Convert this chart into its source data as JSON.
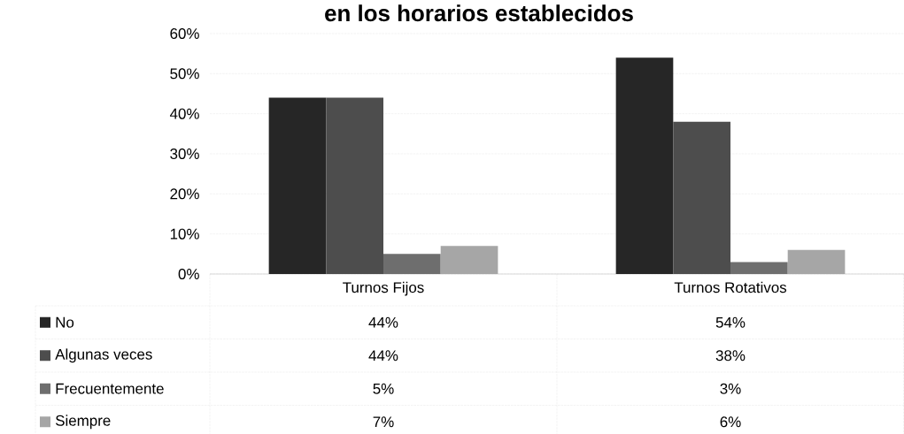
{
  "chart_data": {
    "type": "bar",
    "title": "en los horarios establecidos",
    "categories": [
      "Turnos Fijos",
      "Turnos Rotativos"
    ],
    "series": [
      {
        "name": "No",
        "color": "#262626",
        "values": [
          44,
          54
        ],
        "value_labels": [
          "44%",
          "54%"
        ]
      },
      {
        "name": "Algunas veces",
        "color": "#4d4d4d",
        "values": [
          44,
          38
        ],
        "value_labels": [
          "44%",
          "38%"
        ]
      },
      {
        "name": "Frecuentemente",
        "color": "#6e6e6e",
        "values": [
          5,
          3
        ],
        "value_labels": [
          "5%",
          "3%"
        ]
      },
      {
        "name": "Siempre",
        "color": "#a6a6a6",
        "values": [
          7,
          6
        ],
        "value_labels": [
          "7%",
          "6%"
        ]
      }
    ],
    "ylim": [
      0,
      60
    ],
    "yticks": [
      {
        "value": 0,
        "label": "0%"
      },
      {
        "value": 10,
        "label": "10%"
      },
      {
        "value": 20,
        "label": "20%"
      },
      {
        "value": 30,
        "label": "30%"
      },
      {
        "value": 40,
        "label": "40%"
      },
      {
        "value": 50,
        "label": "50%"
      },
      {
        "value": 60,
        "label": "60%"
      }
    ],
    "grid": "y",
    "legend": "bottom"
  }
}
